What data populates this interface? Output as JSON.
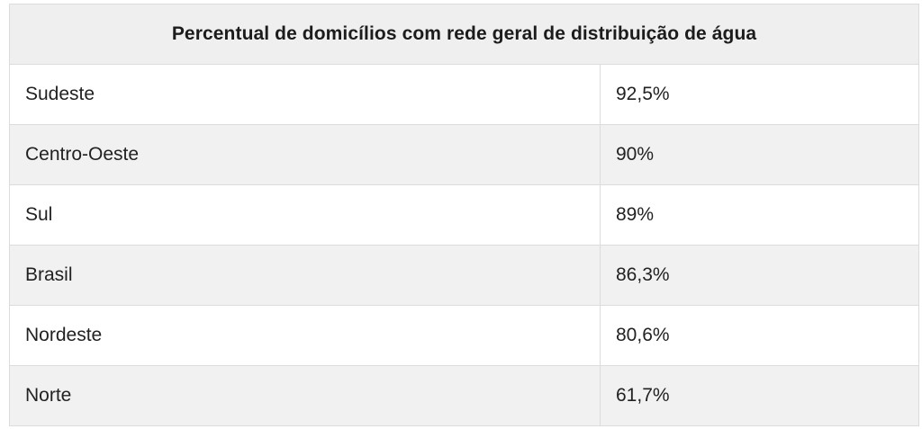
{
  "chart_data": {
    "type": "table",
    "title": "Percentual de domicílios com rede geral de distribuição de água",
    "rows": [
      {
        "region": "Sudeste",
        "value_label": "92,5%",
        "value": 92.5
      },
      {
        "region": "Centro-Oeste",
        "value_label": "90%",
        "value": 90
      },
      {
        "region": "Sul",
        "value_label": "89%",
        "value": 89
      },
      {
        "region": "Brasil",
        "value_label": "86,3%",
        "value": 86.3
      },
      {
        "region": "Nordeste",
        "value_label": "80,6%",
        "value": 80.6
      },
      {
        "region": "Norte",
        "value_label": "61,7%",
        "value": 61.7
      }
    ]
  },
  "colors": {
    "header_bg": "#efefef",
    "alt_row_bg": "#f1f1f1",
    "border": "#dcdcdc",
    "text": "#222222"
  }
}
